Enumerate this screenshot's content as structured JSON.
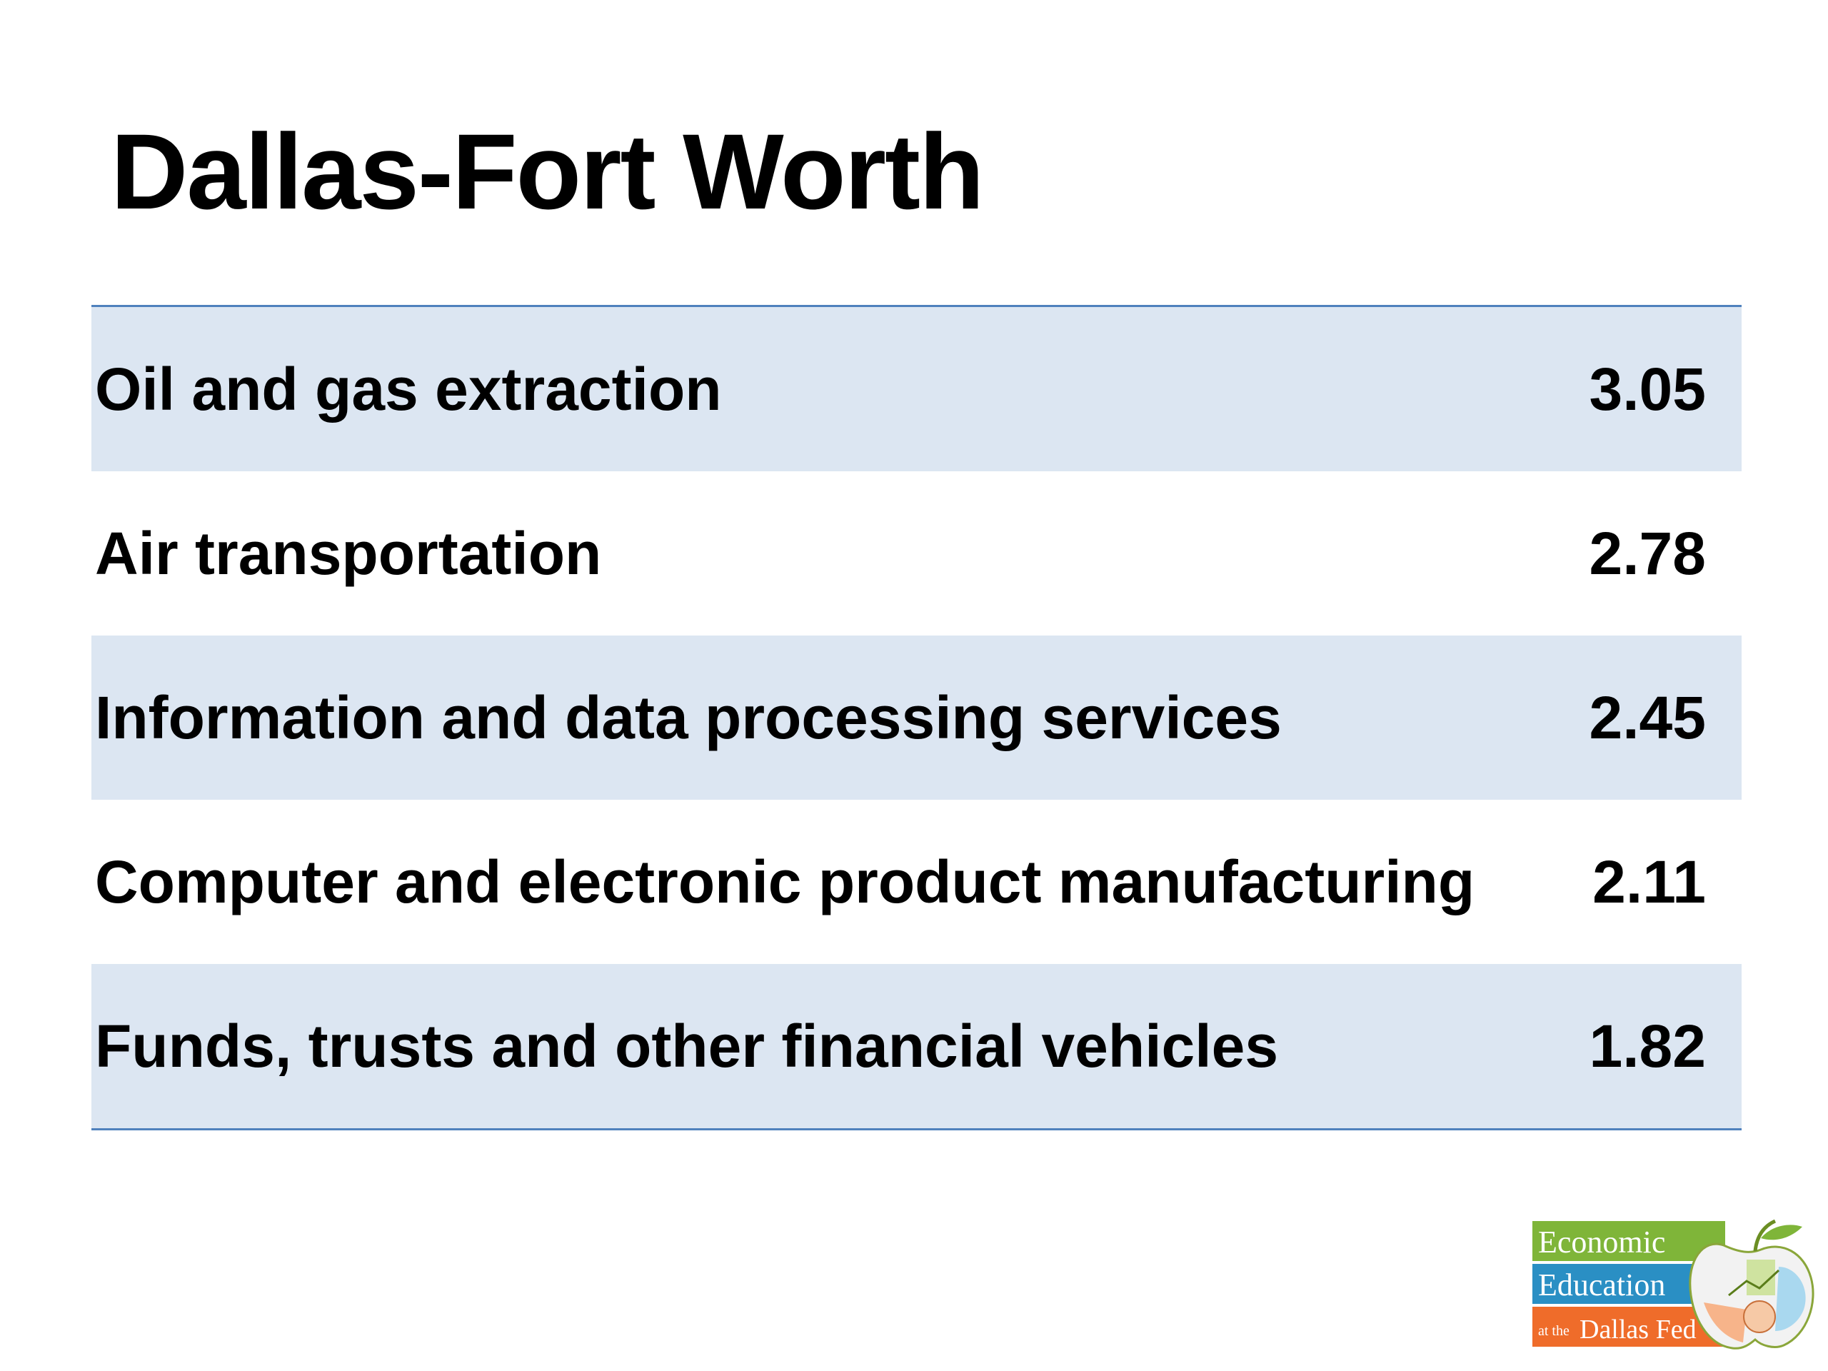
{
  "slide": {
    "title": "Dallas-Fort Worth"
  },
  "table": {
    "rows": [
      {
        "label": "Oil and gas extraction",
        "value": "3.05"
      },
      {
        "label": "Air transportation",
        "value": "2.78"
      },
      {
        "label": "Information and data processing services",
        "value": "2.45"
      },
      {
        "label": "Computer and electronic product manufacturing",
        "value": "2.11"
      },
      {
        "label": "Funds, trusts and other financial vehicles",
        "value": "1.82"
      }
    ]
  },
  "logo": {
    "line1": "Economic",
    "line2": "Education",
    "line3_prefix": "at the",
    "line3": "Dallas Fed"
  },
  "colors": {
    "band_fill": "#dce6f2",
    "table_rule": "#4f81bd",
    "logo_green": "#7fb539",
    "logo_blue": "#2a8fc4",
    "logo_orange": "#ef6c2a"
  }
}
